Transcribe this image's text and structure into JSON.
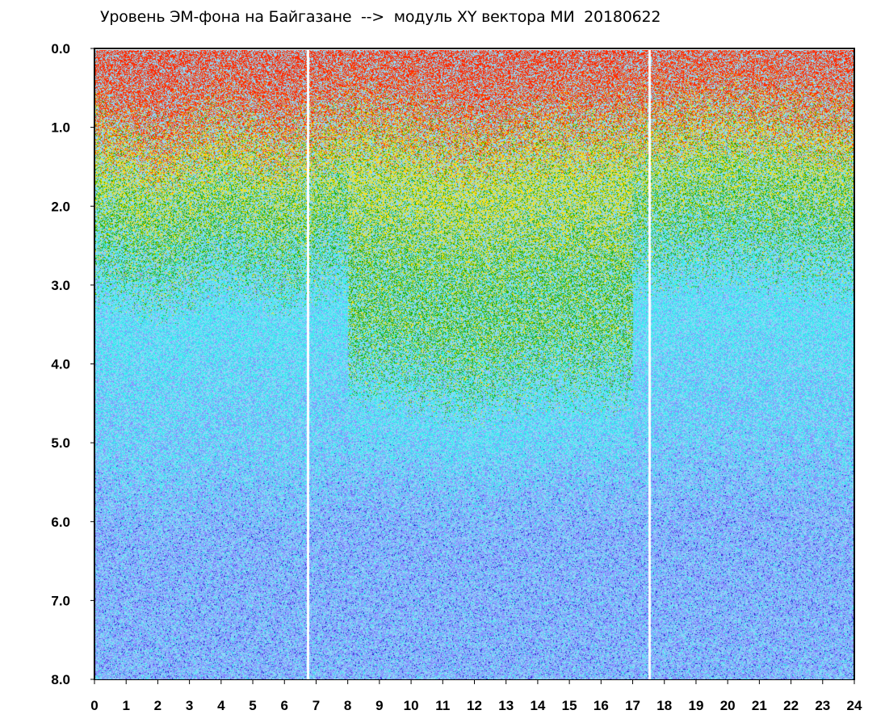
{
  "title": "Уровень ЭМ-фона на Байгазане  -->  модуль XY вектора МИ  20180622",
  "colors": {
    "red": "#ff2a00",
    "orange": "#ff8800",
    "yellow": "#ffe000",
    "green": "#22aa00",
    "cyan": "#33eeee",
    "blue-violet": "#8888ff",
    "dark-blue": "#2222cc",
    "axis": "#000000",
    "background": "#ffffff"
  },
  "chart_data": {
    "type": "scatter",
    "title": "Уровень ЭМ-фона на Байгазане  -->  модуль XY вектора МИ  20180622",
    "xlabel": "",
    "ylabel": "",
    "xlim": [
      0,
      24
    ],
    "ylim": [
      0.0,
      8.0
    ],
    "y_inverted": true,
    "grid": false,
    "legend": "none",
    "x_ticks": [
      "0",
      "1",
      "2",
      "3",
      "4",
      "5",
      "6",
      "7",
      "8",
      "9",
      "10",
      "11",
      "12",
      "13",
      "14",
      "15",
      "16",
      "17",
      "18",
      "19",
      "20",
      "21",
      "22",
      "23",
      "24"
    ],
    "y_ticks": [
      "0.0",
      "1.0",
      "2.0",
      "3.0",
      "4.0",
      "5.0",
      "6.0",
      "7.0",
      "8.0"
    ],
    "color_scale_by_density": [
      "red",
      "orange",
      "yellow",
      "green",
      "cyan",
      "blue-violet",
      "dark-blue"
    ],
    "gaps_x": [
      6.7,
      17.5
    ],
    "density_band_top_y": [
      {
        "x": 0,
        "y": 0.5
      },
      {
        "x": 2,
        "y": 0.8
      },
      {
        "x": 4,
        "y": 0.5
      },
      {
        "x": 6,
        "y": 0.7
      },
      {
        "x": 8,
        "y": 0.4
      },
      {
        "x": 10,
        "y": 0.5
      },
      {
        "x": 12,
        "y": 0.7
      },
      {
        "x": 14,
        "y": 0.5
      },
      {
        "x": 16,
        "y": 0.5
      },
      {
        "x": 18,
        "y": 0.4
      },
      {
        "x": 20,
        "y": 0.3
      },
      {
        "x": 22,
        "y": 0.4
      },
      {
        "x": 24,
        "y": 0.5
      }
    ]
  }
}
